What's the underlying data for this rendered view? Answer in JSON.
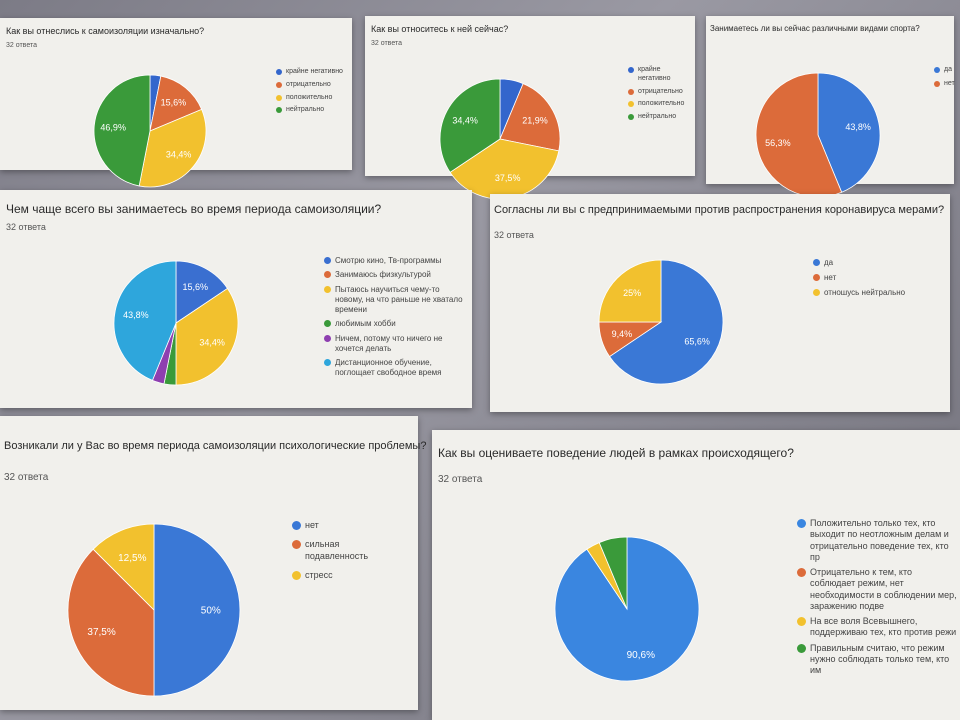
{
  "chart_data": [
    {
      "type": "pie",
      "title": "Как вы отнеслись к самоизоляции изначально?",
      "subtitle": "32 ответа",
      "categories": [
        "крайне негативно",
        "отрицательно",
        "положительно",
        "нейтрально"
      ],
      "values": [
        3.1,
        15.6,
        34.4,
        46.9
      ],
      "labels": [
        "",
        "15,6%",
        "34,4%",
        "46,9%"
      ],
      "colors": [
        "#3366cc",
        "#dc6b3a",
        "#f2c12e",
        "#3a9a3a"
      ],
      "legend": "right"
    },
    {
      "type": "pie",
      "title": "Как вы относитесь к ней сейчас?",
      "subtitle": "32 ответа",
      "categories": [
        "крайне негативно",
        "отрицательно",
        "положительно",
        "нейтрально"
      ],
      "values": [
        6.3,
        21.9,
        37.5,
        34.4
      ],
      "labels": [
        "",
        "21,9%",
        "37,5%",
        "34,4%"
      ],
      "colors": [
        "#3366cc",
        "#dc6b3a",
        "#f2c12e",
        "#3a9a3a"
      ],
      "legend": "right"
    },
    {
      "type": "pie",
      "title": "Занимаетесь ли вы сейчас различными видами спорта?",
      "subtitle": "",
      "categories": [
        "да",
        "нет"
      ],
      "values": [
        43.8,
        56.3
      ],
      "labels": [
        "43,8%",
        "56,3%"
      ],
      "colors": [
        "#3a78d6",
        "#dc6b3a"
      ],
      "legend": "right"
    },
    {
      "type": "pie",
      "title": "Чем чаще всего вы занимаетесь во время периода самоизоляции?",
      "subtitle": "32 ответа",
      "categories": [
        "Смотрю кино, Тв-программы",
        "Занимаюсь физкультурой",
        "Пытаюсь научиться чему-то новому, на что раньше не хватало времени",
        "любимым хобби",
        "Ничем, потому что ничего не хочется делать",
        "Дистанционное обучение, поглощает свободное время"
      ],
      "values": [
        15.6,
        0,
        34.4,
        3.1,
        3.1,
        43.8
      ],
      "labels": [
        "15,6%",
        "",
        "34,4%",
        "",
        "",
        "43,8%"
      ],
      "colors": [
        "#3a6fd0",
        "#dc6b3a",
        "#f2c12e",
        "#3a9a3a",
        "#8e3fb0",
        "#2ea6dc"
      ],
      "legend": "right"
    },
    {
      "type": "pie",
      "title": "Согласны ли вы с предпринимаемыми против распространения коронавируса мерами?",
      "subtitle": "32 ответа",
      "categories": [
        "да",
        "нет",
        "отношусь нейтрально"
      ],
      "values": [
        65.6,
        9.4,
        25
      ],
      "labels": [
        "65,6%",
        "9,4%",
        "25%"
      ],
      "colors": [
        "#3a78d6",
        "#dc6b3a",
        "#f2c12e"
      ],
      "legend": "right"
    },
    {
      "type": "pie",
      "title": "Возникали ли у Вас во время периода самоизоляции психологические проблемы?",
      "subtitle": "32 ответа",
      "categories": [
        "нет",
        "сильная подавленность",
        "стресс"
      ],
      "values": [
        50,
        37.5,
        12.5
      ],
      "labels": [
        "50%",
        "37,5%",
        "12,5%"
      ],
      "colors": [
        "#3a78d6",
        "#dc6b3a",
        "#f2c12e"
      ],
      "legend": "right"
    },
    {
      "type": "pie",
      "title": "Как вы оцениваете поведение людей в рамках происходящего?",
      "subtitle": "32 ответа",
      "categories": [
        "Положительно только тех, кто выходит по неотложным делам и отрицательно поведение тех, кто пр",
        "Отрицательно к тем, кто соблюдает режим, нет необходимости в соблюдении мер, заражению подве",
        "На все воля Всевышнего, поддерживаю тех, кто против режи",
        "Правильным считаю, что режим нужно соблюдать только тем, кто им"
      ],
      "values": [
        90.6,
        0,
        3.1,
        6.3
      ],
      "labels": [
        "90,6%",
        "",
        "",
        ""
      ],
      "colors": [
        "#3a86e0",
        "#dc6b3a",
        "#f2c12e",
        "#3a9a3a"
      ],
      "legend": "right"
    }
  ]
}
